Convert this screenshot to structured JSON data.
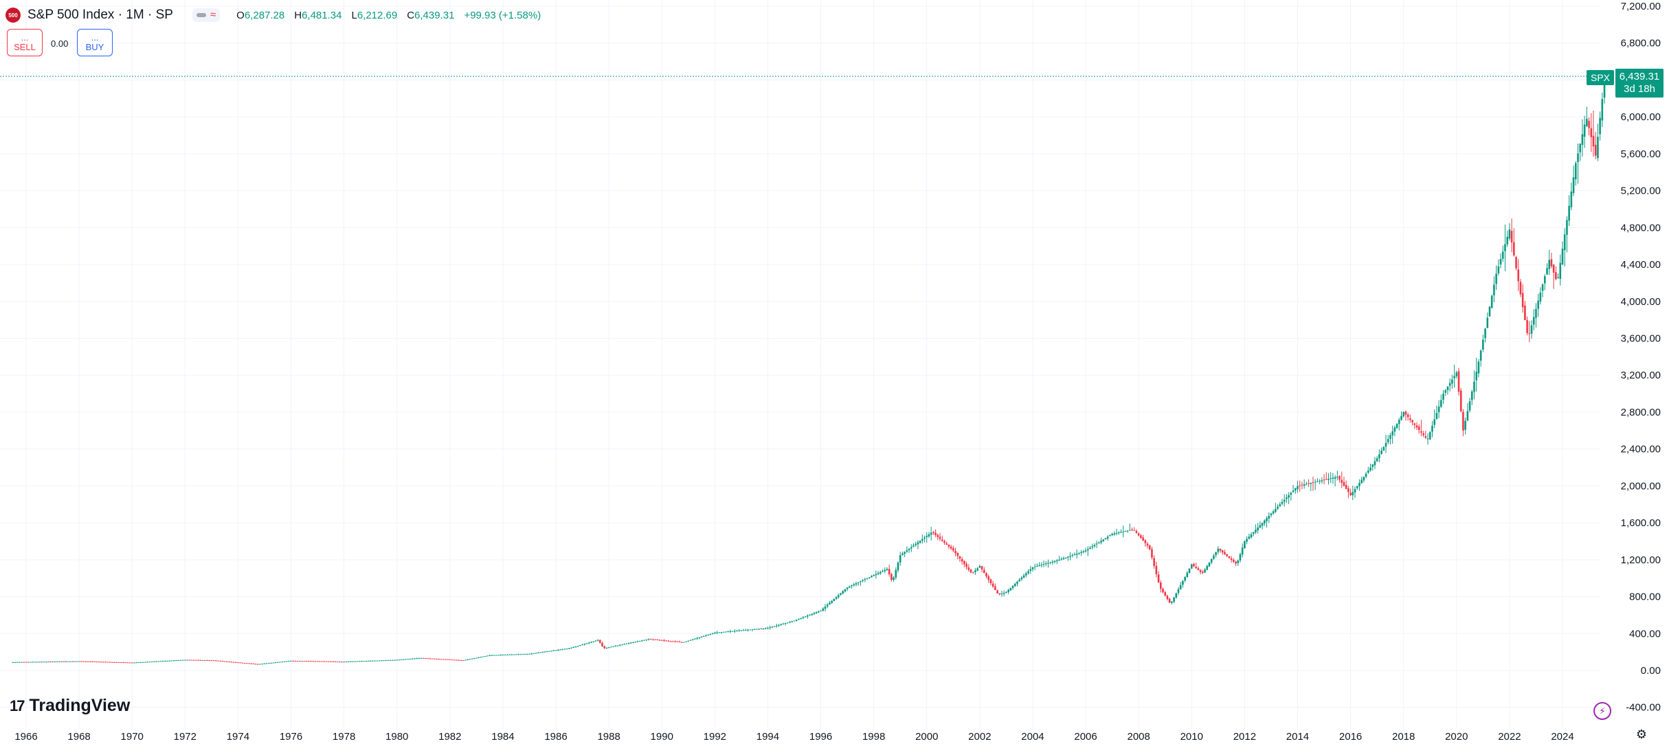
{
  "header": {
    "logo_text": "500",
    "title": "S&P 500 Index · 1M · SP",
    "approx_icon": "≈",
    "ohlc": {
      "o_label": "O",
      "o": "6,287.28",
      "h_label": "H",
      "h": "6,481.34",
      "l_label": "L",
      "l": "6,212.69",
      "c_label": "C",
      "c": "6,439.31",
      "change": "+99.93 (+1.58%)"
    }
  },
  "trade": {
    "sell_dots": "...",
    "sell_label": "SELL",
    "spread": "0.00",
    "buy_dots": "...",
    "buy_label": "BUY"
  },
  "price_tag": {
    "symbol": "SPX",
    "price": "6,439.31",
    "countdown": "3d 18h"
  },
  "branding": {
    "logo_mark": "17",
    "name": "TradingView"
  },
  "colors": {
    "up": "#089981",
    "down": "#f23645",
    "grid": "#f0f3fa",
    "axis_text": "#131722"
  },
  "icons": {
    "lightning": "lightning-icon",
    "settings": "gear-icon"
  },
  "chart_data": {
    "type": "candlestick",
    "interval": "1M",
    "y_scale": "linear",
    "ylim": [
      -400,
      7200
    ],
    "y_ticks": [
      -400,
      0,
      400,
      800,
      1200,
      1600,
      2000,
      2400,
      2800,
      3200,
      3600,
      4000,
      4400,
      4800,
      5200,
      5600,
      6000,
      6400,
      6800,
      7200
    ],
    "y_tick_labels": [
      "-400.00",
      "0.00",
      "400.00",
      "800.00",
      "1,200.00",
      "1,600.00",
      "2,000.00",
      "2,400.00",
      "2,800.00",
      "3,200.00",
      "3,600.00",
      "4,000.00",
      "4,400.00",
      "4,800.00",
      "5,200.00",
      "5,600.00",
      "6,000.00",
      "6,400.00",
      "6,800.00",
      "7,200.00"
    ],
    "x_range": [
      1965.5,
      2026.3
    ],
    "x_ticks": [
      1966,
      1968,
      1970,
      1972,
      1974,
      1976,
      1978,
      1980,
      1982,
      1984,
      1986,
      1988,
      1990,
      1992,
      1994,
      1996,
      1998,
      2000,
      2002,
      2004,
      2006,
      2008,
      2010,
      2012,
      2014,
      2016,
      2018,
      2020,
      2022,
      2024
    ],
    "x_tick_labels": [
      "1966",
      "1968",
      "1970",
      "1972",
      "1974",
      "1976",
      "1978",
      "1980",
      "1982",
      "1984",
      "1986",
      "1988",
      "1990",
      "1992",
      "1994",
      "1996",
      "1998",
      "2000",
      "2002",
      "2004",
      "2006",
      "2008",
      "2010",
      "2012",
      "2014",
      "2016",
      "2018",
      "2020",
      "2022",
      "2024"
    ],
    "grid": true,
    "last_price": 6439.31,
    "close_series": [
      [
        1965.5,
        90
      ],
      [
        1968,
        100
      ],
      [
        1970,
        85
      ],
      [
        1972,
        115
      ],
      [
        1973,
        110
      ],
      [
        1974.75,
        68
      ],
      [
        1976,
        105
      ],
      [
        1978,
        95
      ],
      [
        1980,
        115
      ],
      [
        1980.9,
        135
      ],
      [
        1982.5,
        110
      ],
      [
        1983.5,
        165
      ],
      [
        1985,
        180
      ],
      [
        1986.5,
        240
      ],
      [
        1987.6,
        330
      ],
      [
        1987.8,
        240
      ],
      [
        1989.5,
        340
      ],
      [
        1990.8,
        305
      ],
      [
        1992,
        410
      ],
      [
        1994,
        460
      ],
      [
        1995,
        540
      ],
      [
        1996,
        650
      ],
      [
        1997,
        900
      ],
      [
        1998.5,
        1100
      ],
      [
        1998.7,
        960
      ],
      [
        1999,
        1250
      ],
      [
        2000.2,
        1500
      ],
      [
        2001,
        1300
      ],
      [
        2001.7,
        1050
      ],
      [
        2002,
        1130
      ],
      [
        2002.7,
        820
      ],
      [
        2003,
        850
      ],
      [
        2004,
        1120
      ],
      [
        2005,
        1200
      ],
      [
        2006,
        1300
      ],
      [
        2007,
        1480
      ],
      [
        2007.8,
        1530
      ],
      [
        2008.4,
        1330
      ],
      [
        2008.8,
        900
      ],
      [
        2009.2,
        720
      ],
      [
        2010,
        1150
      ],
      [
        2010.4,
        1050
      ],
      [
        2011,
        1320
      ],
      [
        2011.7,
        1150
      ],
      [
        2012,
        1400
      ],
      [
        2013,
        1700
      ],
      [
        2014,
        2000
      ],
      [
        2015.5,
        2100
      ],
      [
        2016,
        1900
      ],
      [
        2017,
        2300
      ],
      [
        2018,
        2800
      ],
      [
        2018.9,
        2500
      ],
      [
        2019.5,
        3000
      ],
      [
        2020,
        3230
      ],
      [
        2020.25,
        2600
      ],
      [
        2020.8,
        3300
      ],
      [
        2021.5,
        4300
      ],
      [
        2022,
        4780
      ],
      [
        2022.7,
        3600
      ],
      [
        2023.5,
        4450
      ],
      [
        2023.8,
        4200
      ],
      [
        2024.5,
        5500
      ],
      [
        2024.9,
        6000
      ],
      [
        2025.25,
        5580
      ],
      [
        2025.6,
        6439.31
      ]
    ]
  }
}
